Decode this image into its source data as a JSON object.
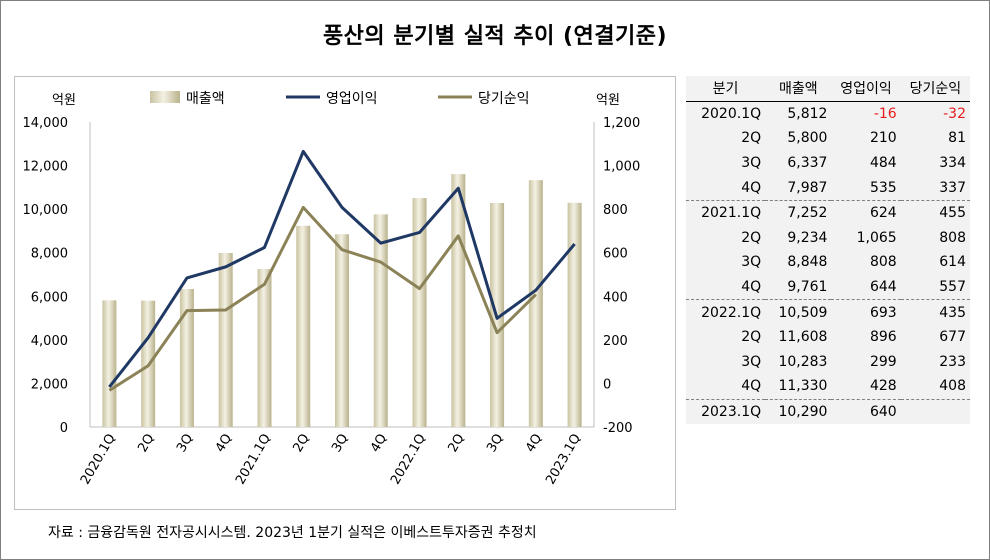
{
  "title": "풍산의 분기별 실적 추이 (연결기준)",
  "source_note": "자료 : 금융감독원 전자공시시스템. 2023년 1분기 실적은 이베스트투자증권 추정치",
  "chart_data": {
    "type": "bar",
    "categories": [
      "2020.1Q",
      "2Q",
      "3Q",
      "4Q",
      "2021.1Q",
      "2Q",
      "3Q",
      "4Q",
      "2022.1Q",
      "2Q",
      "3Q",
      "4Q",
      "2023.1Q"
    ],
    "left_axis_unit": "억원",
    "right_axis_unit": "억원",
    "ylim_left": [
      0,
      14000
    ],
    "ylim_right": [
      -200,
      1200
    ],
    "left_ticks": [
      0,
      2000,
      4000,
      6000,
      8000,
      10000,
      12000,
      14000
    ],
    "right_ticks": [
      -200,
      0,
      200,
      400,
      600,
      800,
      1000,
      1200
    ],
    "legend_position": "top",
    "colors": {
      "revenue": "#d8d4b8",
      "operating": "#1f3864",
      "net": "#8b8257",
      "negative_tick": "#e81c1c"
    },
    "series": [
      {
        "name": "매출액",
        "type": "bar",
        "axis": "left",
        "values": [
          5812,
          5800,
          6337,
          7987,
          7252,
          9234,
          8848,
          9761,
          10509,
          11608,
          10283,
          11330,
          10290
        ]
      },
      {
        "name": "영업이익",
        "type": "line",
        "axis": "right",
        "values": [
          -16,
          210,
          484,
          535,
          624,
          1065,
          808,
          644,
          693,
          896,
          299,
          428,
          640
        ]
      },
      {
        "name": "당기순익",
        "type": "line",
        "axis": "right",
        "values": [
          -32,
          81,
          334,
          337,
          455,
          808,
          614,
          557,
          435,
          677,
          233,
          408,
          null
        ]
      }
    ]
  },
  "table": {
    "headers": [
      "분기",
      "매출액",
      "영업이익",
      "당기순익"
    ],
    "rows": [
      [
        "2020.1Q",
        "5,812",
        "-16",
        "-32"
      ],
      [
        "2Q",
        "5,800",
        "210",
        "81"
      ],
      [
        "3Q",
        "6,337",
        "484",
        "334"
      ],
      [
        "4Q",
        "7,987",
        "535",
        "337"
      ],
      [
        "2021.1Q",
        "7,252",
        "624",
        "455"
      ],
      [
        "2Q",
        "9,234",
        "1,065",
        "808"
      ],
      [
        "3Q",
        "8,848",
        "808",
        "614"
      ],
      [
        "4Q",
        "9,761",
        "644",
        "557"
      ],
      [
        "2022.1Q",
        "10,509",
        "693",
        "435"
      ],
      [
        "2Q",
        "11,608",
        "896",
        "677"
      ],
      [
        "3Q",
        "10,283",
        "299",
        "233"
      ],
      [
        "4Q",
        "11,330",
        "428",
        "408"
      ],
      [
        "2023.1Q",
        "10,290",
        "640",
        ""
      ]
    ]
  }
}
